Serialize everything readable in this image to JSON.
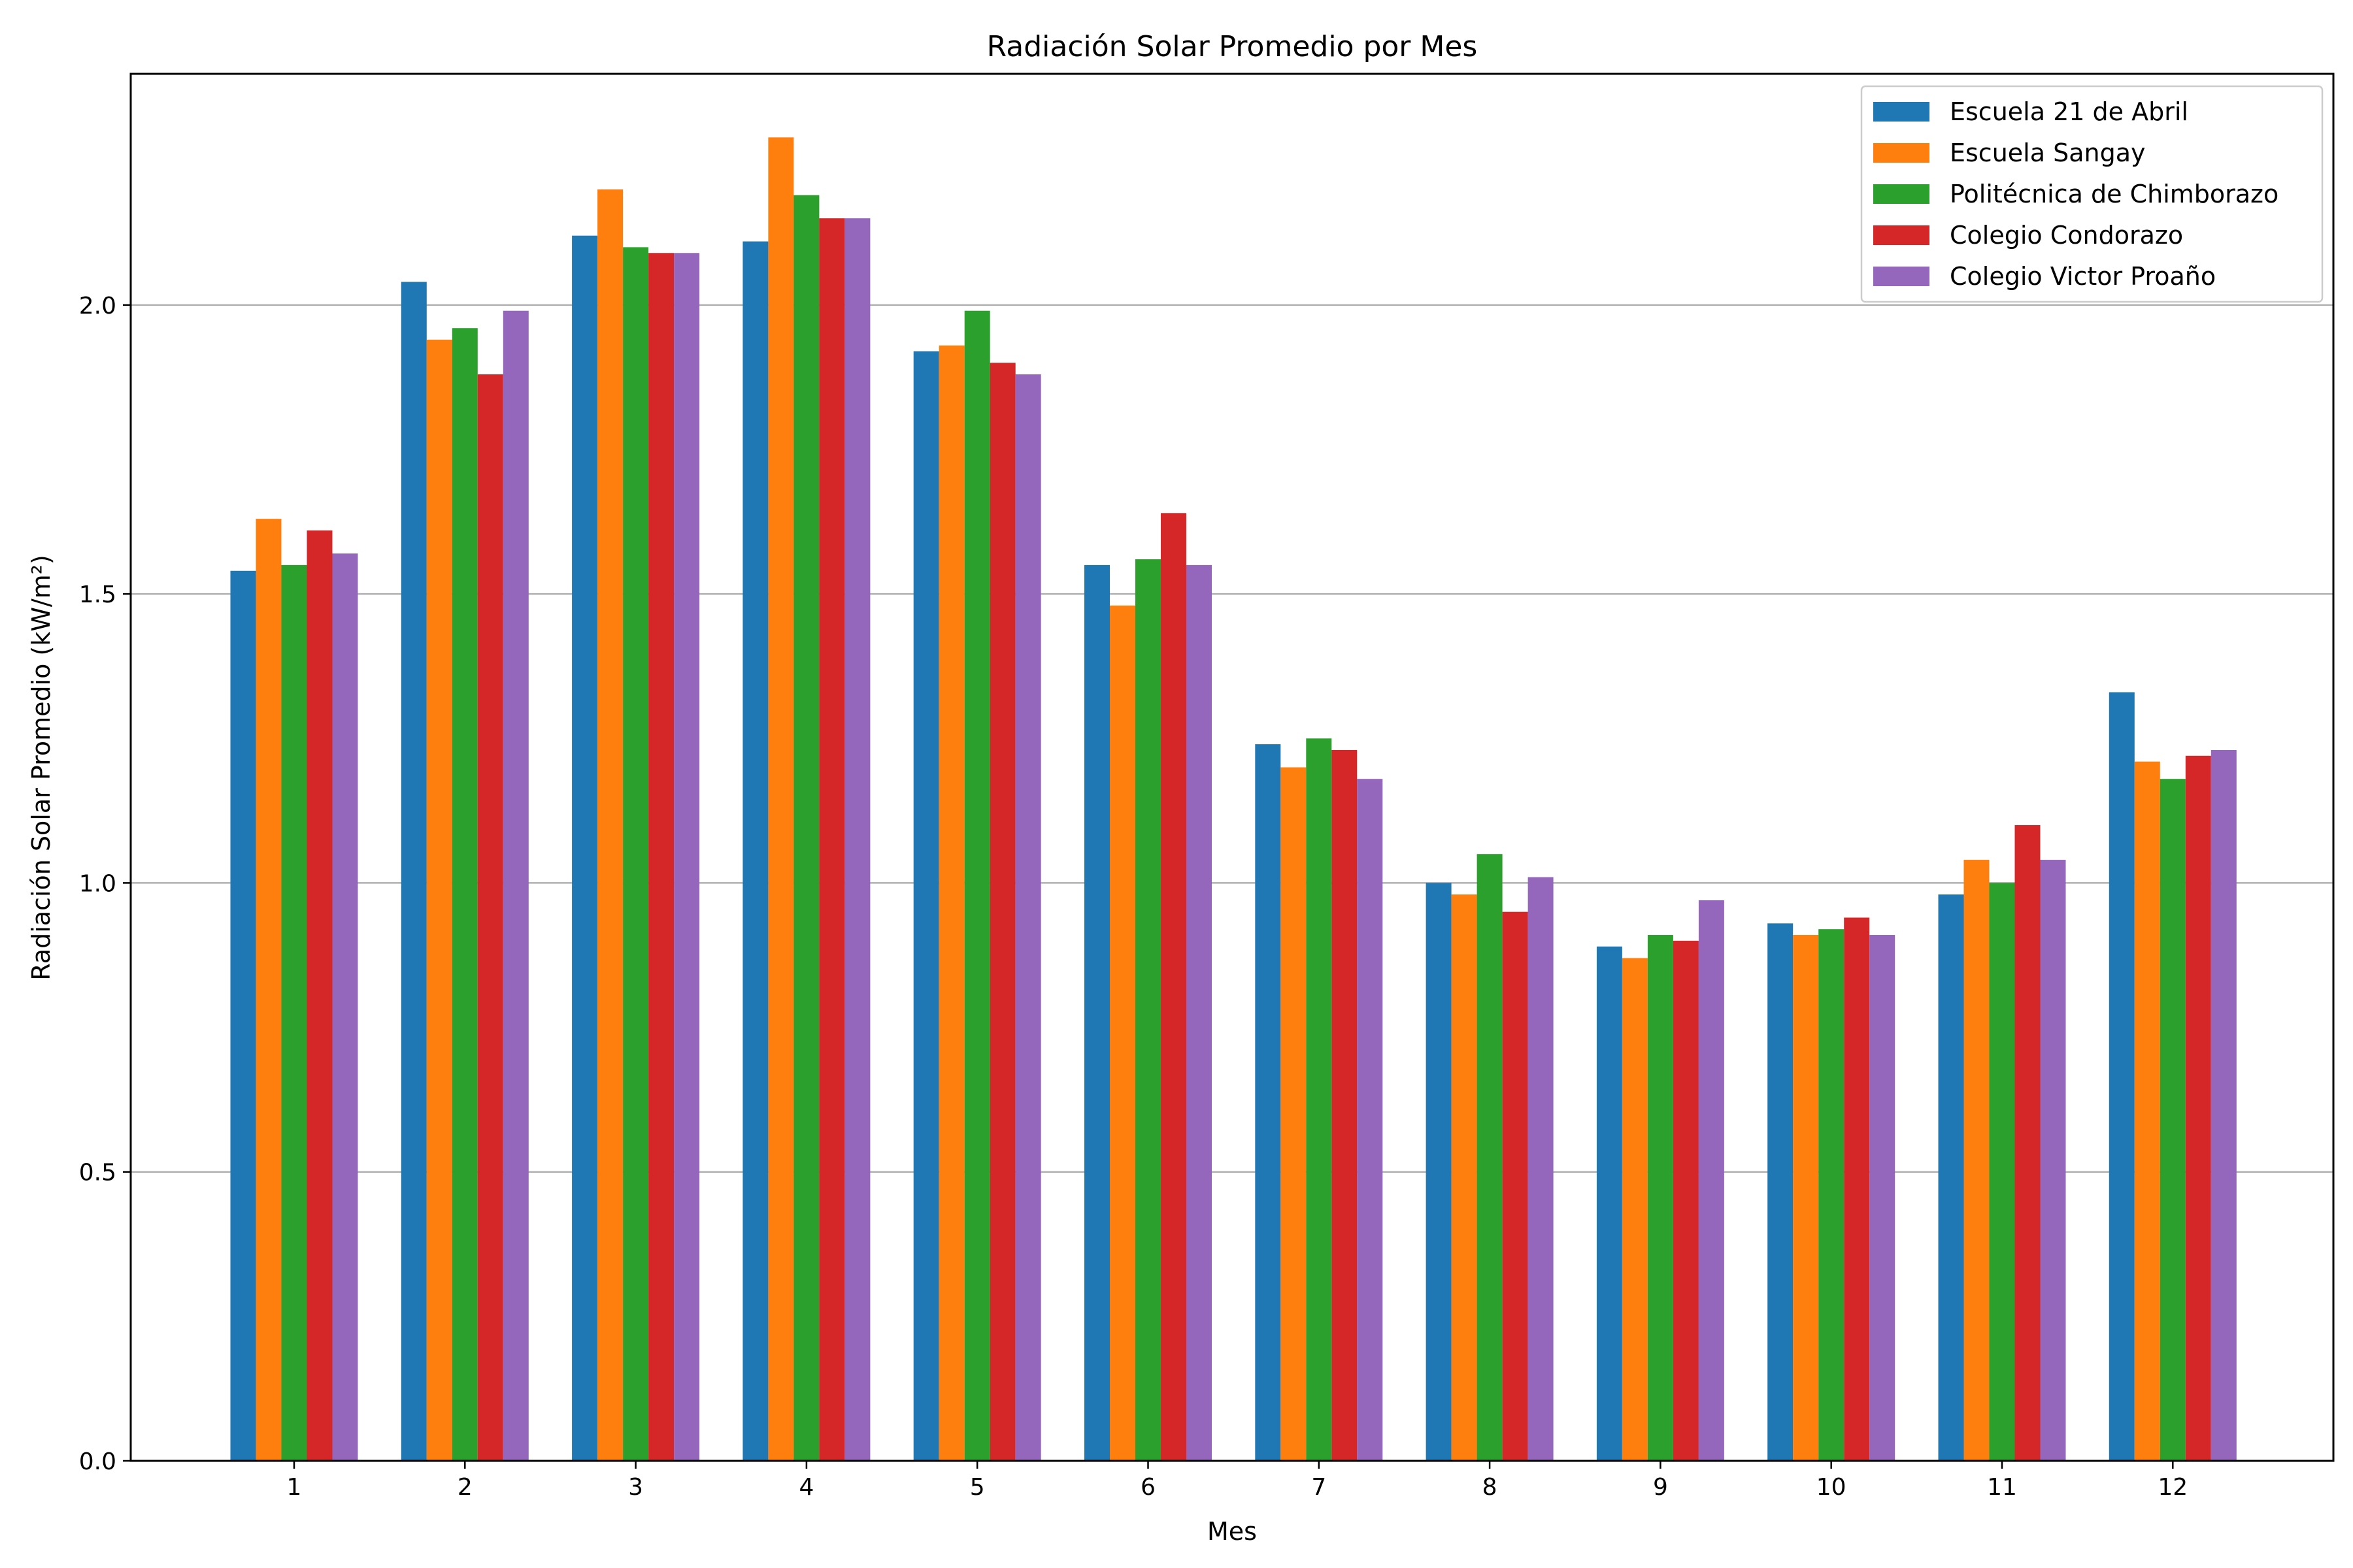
{
  "chart_data": {
    "type": "bar",
    "title": "Radiación Solar Promedio por Mes",
    "xlabel": "Mes",
    "ylabel": "Radiación Solar Promedio (kW/m²)",
    "ylim": [
      0,
      2.4
    ],
    "yticks": [
      "0.0",
      "0.5",
      "1.0",
      "1.5",
      "2.0"
    ],
    "grid": "horizontal",
    "legend_position": "top-right",
    "categories": [
      "1",
      "2",
      "3",
      "4",
      "5",
      "6",
      "7",
      "8",
      "9",
      "10",
      "11",
      "12"
    ],
    "series": [
      {
        "name": "Escuela 21 de Abril",
        "color": "#1f77b4",
        "values": [
          1.54,
          2.04,
          2.12,
          2.11,
          1.92,
          1.55,
          1.24,
          1.0,
          0.89,
          0.93,
          0.98,
          1.33
        ]
      },
      {
        "name": "Escuela Sangay",
        "color": "#ff7f0e",
        "values": [
          1.63,
          1.94,
          2.2,
          2.29,
          1.93,
          1.48,
          1.2,
          0.98,
          0.87,
          0.91,
          1.04,
          1.21
        ]
      },
      {
        "name": "Politécnica de Chimborazo",
        "color": "#2ca02c",
        "values": [
          1.55,
          1.96,
          2.1,
          2.19,
          1.99,
          1.56,
          1.25,
          1.05,
          0.91,
          0.92,
          1.0,
          1.18
        ]
      },
      {
        "name": "Colegio Condorazo",
        "color": "#d62728",
        "values": [
          1.61,
          1.88,
          2.09,
          2.15,
          1.9,
          1.64,
          1.23,
          0.95,
          0.9,
          0.94,
          1.1,
          1.22
        ]
      },
      {
        "name": "Colegio Victor Proaño",
        "color": "#9467bd",
        "values": [
          1.57,
          1.99,
          2.09,
          2.15,
          1.88,
          1.55,
          1.18,
          1.01,
          0.97,
          0.91,
          1.04,
          1.23
        ]
      }
    ]
  }
}
